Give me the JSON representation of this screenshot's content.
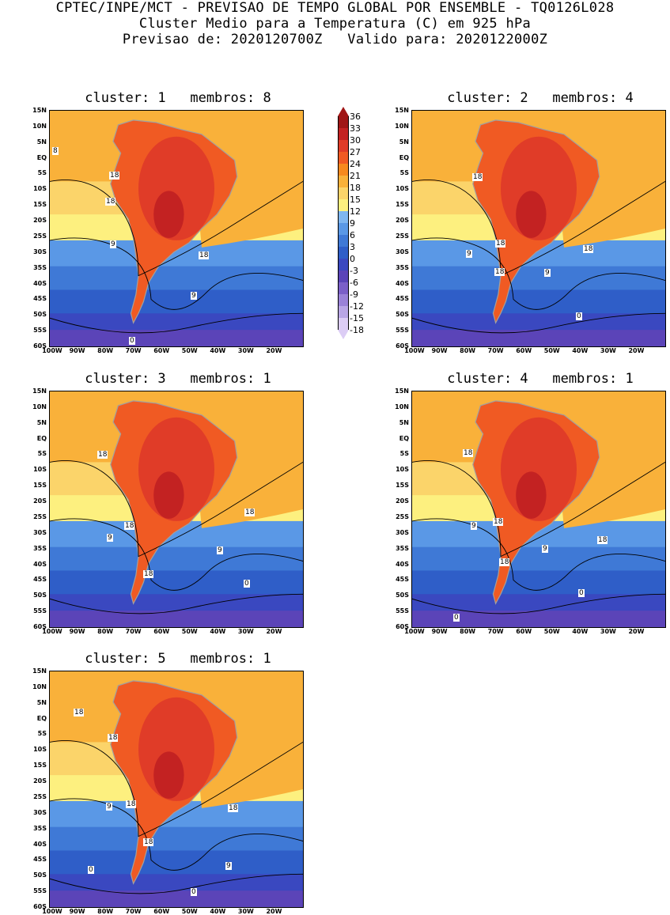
{
  "header": {
    "line1": "CPTEC/INPE/MCT - PREVISAO DE TEMPO GLOBAL POR ENSEMBLE - TQ0126L028",
    "line2": "Cluster Medio para a Temperatura (C) em 925 hPa",
    "line3": "Previsao de: 2020120700Z   Valido para: 2020122000Z"
  },
  "lat_ticks": [
    "15N",
    "10N",
    "5N",
    "EQ",
    "5S",
    "10S",
    "15S",
    "20S",
    "25S",
    "30S",
    "35S",
    "40S",
    "45S",
    "50S",
    "55S",
    "60S"
  ],
  "lon_ticks": [
    "100W",
    "90W",
    "80W",
    "70W",
    "60W",
    "50W",
    "40W",
    "30W",
    "20W"
  ],
  "colorbar": {
    "labels": [
      "36",
      "33",
      "30",
      "27",
      "24",
      "21",
      "18",
      "15",
      "12",
      "9",
      "6",
      "3",
      "0",
      "-3",
      "-6",
      "-9",
      "-12",
      "-15",
      "-18"
    ],
    "colors": [
      "#a01616",
      "#c32222",
      "#e03c28",
      "#f05a23",
      "#f7891e",
      "#f9b13a",
      "#fbd46a",
      "#fdf07f",
      "#7fb6f0",
      "#5a98e6",
      "#3f79d6",
      "#2f5ec8",
      "#3a48c0",
      "#5b44b8",
      "#7b5fc8",
      "#9a82d8",
      "#b9a6e6",
      "#dccdf5"
    ]
  },
  "panels": [
    {
      "title": "cluster: 1   membros: 8",
      "labels": [
        "8",
        "18",
        "18",
        "9",
        "18",
        "9",
        "0"
      ]
    },
    {
      "title": "cluster: 2   membros: 4",
      "labels": [
        "18",
        "18",
        "18",
        "9",
        "18",
        "9",
        "0"
      ]
    },
    {
      "title": "cluster: 3   membros: 1",
      "labels": [
        "18",
        "18",
        "9",
        "18",
        "18",
        "9",
        "0"
      ]
    },
    {
      "title": "cluster: 4   membros: 1",
      "labels": [
        "18",
        "18",
        "9",
        "18",
        "18",
        "9",
        "0",
        "0"
      ]
    },
    {
      "title": "cluster: 5   membros: 1",
      "labels": [
        "18",
        "18",
        "9",
        "18",
        "18",
        "18",
        "9",
        "0",
        "0"
      ]
    }
  ]
}
